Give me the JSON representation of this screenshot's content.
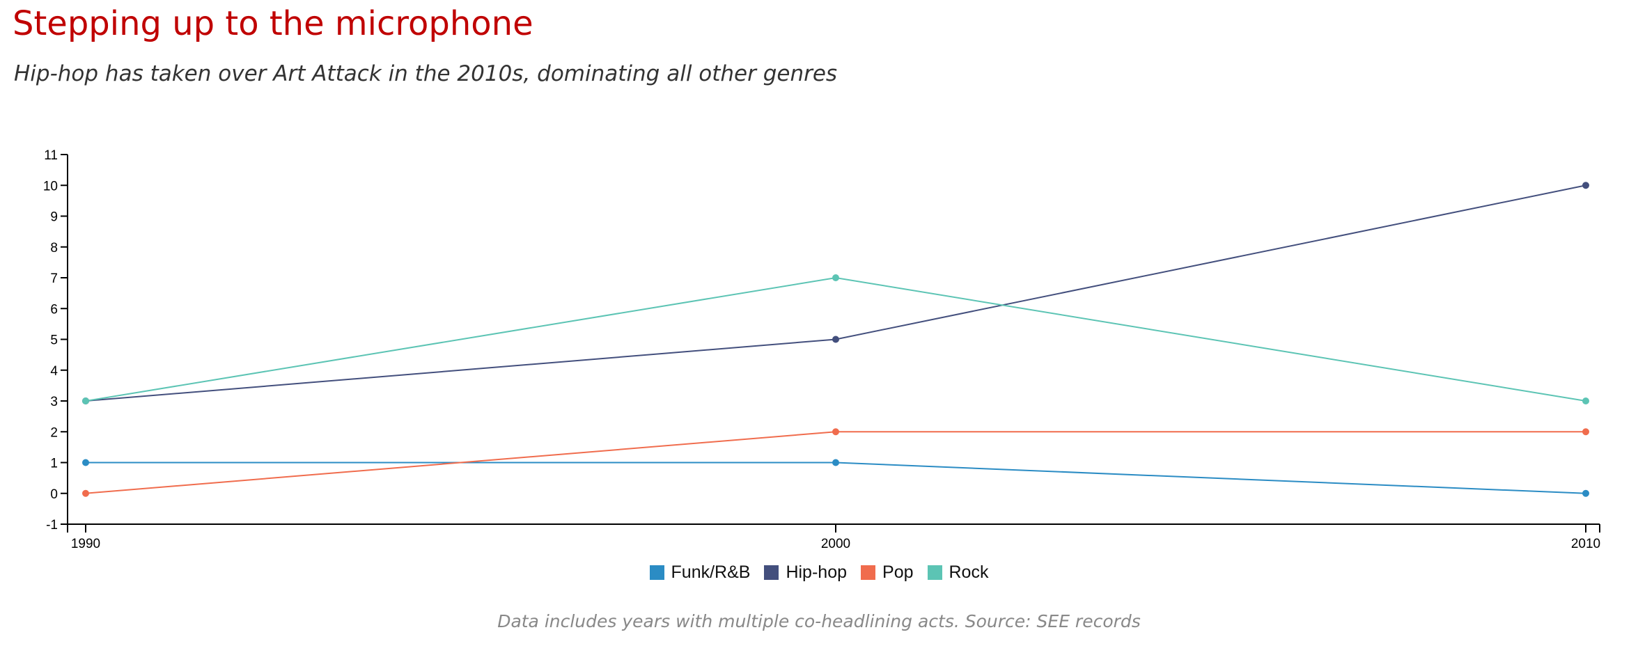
{
  "title": "Stepping up to the microphone",
  "subtitle": "Hip-hop has taken over Art Attack in the 2010s, dominating all other genres",
  "footnote": "Data includes years with multiple co-headlining acts. Source: SEE records",
  "chart_data": {
    "type": "line",
    "title": "Stepping up to the microphone",
    "subtitle": "Hip-hop has taken over Art Attack in the 2010s, dominating all other genres",
    "x": [
      1990,
      2000,
      2010
    ],
    "x_tick_labels": [
      "1990",
      "2000",
      "2010"
    ],
    "xlim": [
      1990,
      2010
    ],
    "ylim": [
      -1,
      11
    ],
    "y_ticks": [
      -1,
      0,
      1,
      2,
      3,
      4,
      5,
      6,
      7,
      8,
      9,
      10,
      11
    ],
    "grid": false,
    "legend_position": "bottom",
    "series": [
      {
        "name": "Funk/R&B",
        "color": "#2b8cc4",
        "values": [
          1,
          1,
          0
        ]
      },
      {
        "name": "Hip-hop",
        "color": "#434f7d",
        "values": [
          3,
          5,
          10
        ]
      },
      {
        "name": "Pop",
        "color": "#f06c4d",
        "values": [
          0,
          2,
          2
        ]
      },
      {
        "name": "Rock",
        "color": "#5cc4b4",
        "values": [
          3,
          7,
          3
        ]
      }
    ]
  }
}
